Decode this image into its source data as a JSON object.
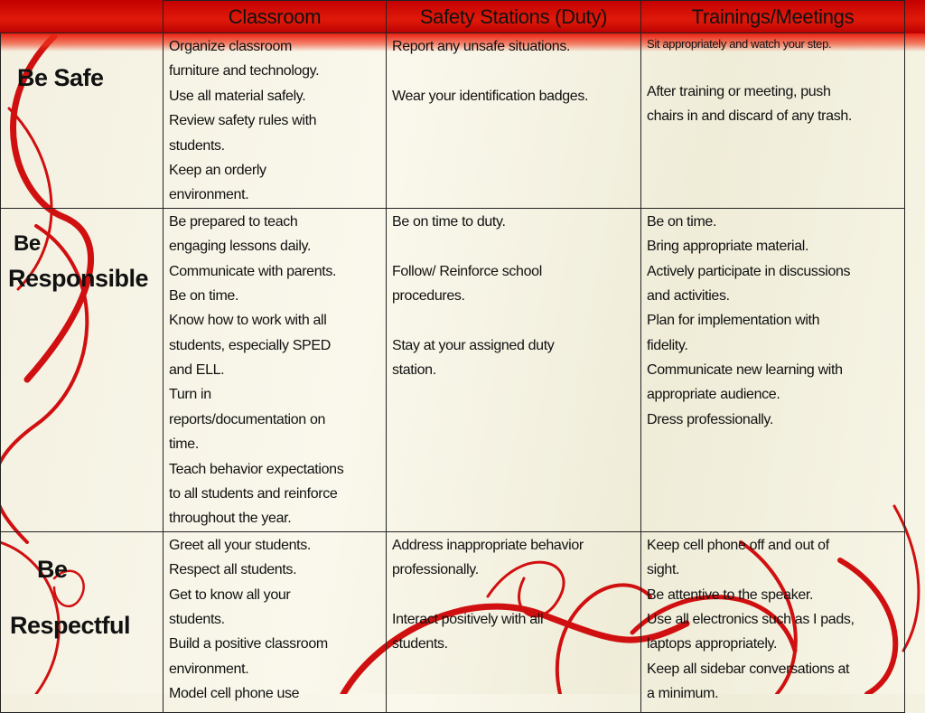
{
  "colors": {
    "header_band": "#d00a00",
    "swirl": "#d01010",
    "background": "#f5f3e4"
  },
  "header": {
    "columns": [
      "Classroom",
      "Safety Stations  (Duty)",
      "Trainings/Meetings"
    ]
  },
  "rows": [
    {
      "label": [
        "Be Safe"
      ],
      "cells": [
        [
          "Organize classroom",
          "furniture and technology.",
          "Use all material safely.",
          "Review safety rules with",
          "students.",
          "Keep an orderly",
          "environment."
        ],
        [
          "Report any unsafe situations.",
          "",
          "Wear your identification badges."
        ],
        [
          "Sit appropriately and watch your step.",
          "",
          "After training or meeting, push",
          "chairs in and discard of any trash."
        ]
      ]
    },
    {
      "label": [
        "Be",
        "Responsible"
      ],
      "cells": [
        [
          "Be prepared to teach",
          "engaging lessons daily.",
          "Communicate with parents.",
          "Be on time.",
          "Know how to work with all",
          "students, especially SPED",
          "and ELL.",
          "Turn in",
          "reports/documentation on",
          "time.",
          "Teach behavior expectations",
          "to all students and reinforce",
          "throughout the year."
        ],
        [
          "Be on time to duty.",
          "",
          "Follow/ Reinforce school",
          "procedures.",
          "",
          "Stay at your assigned duty",
          "station."
        ],
        [
          "Be on time.",
          "Bring appropriate material.",
          "Actively participate in discussions",
          "and activities.",
          "Plan for implementation with",
          "fidelity.",
          "Communicate new learning with",
          "appropriate audience.",
          "Dress professionally."
        ]
      ]
    },
    {
      "label": [
        "Be",
        "Respectful"
      ],
      "cells": [
        [
          "Greet all your students.",
          "Respect all students.",
          "Get to know all your",
          "students.",
          "Build a positive classroom",
          "environment.",
          "Model cell phone use"
        ],
        [
          "Address inappropriate behavior",
          "professionally.",
          "",
          "Interact positively with all",
          "students."
        ],
        [
          "Keep cell phone off and out of",
          "sight.",
          "Be attentive to the speaker.",
          "Use all electronics such as I pads,",
          "laptops appropriately.",
          "Keep all sidebar conversations at",
          "a minimum."
        ]
      ]
    }
  ]
}
